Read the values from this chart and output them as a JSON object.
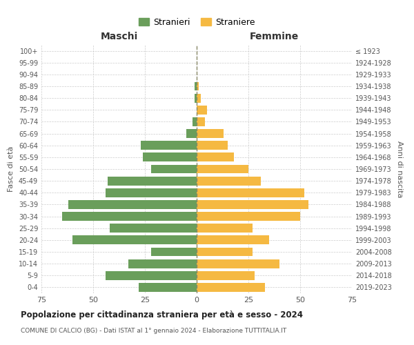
{
  "age_groups": [
    "0-4",
    "5-9",
    "10-14",
    "15-19",
    "20-24",
    "25-29",
    "30-34",
    "35-39",
    "40-44",
    "45-49",
    "50-54",
    "55-59",
    "60-64",
    "65-69",
    "70-74",
    "75-79",
    "80-84",
    "85-89",
    "90-94",
    "95-99",
    "100+"
  ],
  "birth_years": [
    "2019-2023",
    "2014-2018",
    "2009-2013",
    "2004-2008",
    "1999-2003",
    "1994-1998",
    "1989-1993",
    "1984-1988",
    "1979-1983",
    "1974-1978",
    "1969-1973",
    "1964-1968",
    "1959-1963",
    "1954-1958",
    "1949-1953",
    "1944-1948",
    "1939-1943",
    "1934-1938",
    "1929-1933",
    "1924-1928",
    "≤ 1923"
  ],
  "maschi": [
    28,
    44,
    33,
    22,
    60,
    42,
    65,
    62,
    44,
    43,
    22,
    26,
    27,
    5,
    2,
    0,
    1,
    1,
    0,
    0,
    0
  ],
  "femmine": [
    33,
    28,
    40,
    27,
    35,
    27,
    50,
    54,
    52,
    31,
    25,
    18,
    15,
    13,
    4,
    5,
    2,
    1,
    0,
    0,
    0
  ],
  "color_maschi": "#6a9e5b",
  "color_femmine": "#f5b942",
  "title": "Popolazione per cittadinanza straniera per età e sesso - 2024",
  "subtitle": "COMUNE DI CALCIO (BG) - Dati ISTAT al 1° gennaio 2024 - Elaborazione TUTTITALIA.IT",
  "xlabel_left": "Maschi",
  "xlabel_right": "Femmine",
  "ylabel_left": "Fasce di età",
  "ylabel_right": "Anni di nascita",
  "legend_maschi": "Stranieri",
  "legend_femmine": "Straniere",
  "xlim": 75,
  "background_color": "#ffffff",
  "grid_color": "#cccccc"
}
